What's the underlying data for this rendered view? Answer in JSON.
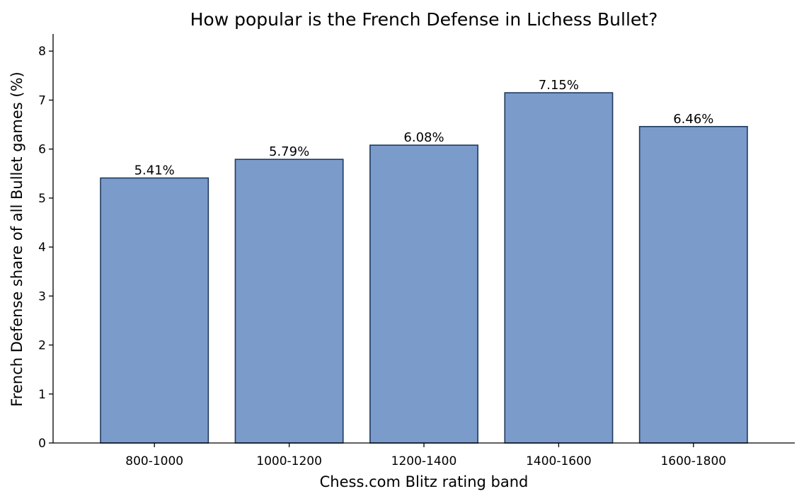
{
  "chart_data": {
    "type": "bar",
    "title": "How popular is the French Defense in Lichess Bullet?",
    "xlabel": "Chess.com Blitz rating band",
    "ylabel": "French Defense share of all Bullet games (%)",
    "categories": [
      "800-1000",
      "1000-1200",
      "1200-1400",
      "1400-1600",
      "1600-1800"
    ],
    "values": [
      5.41,
      5.79,
      6.08,
      7.15,
      6.46
    ],
    "data_labels": [
      "5.41%",
      "5.79%",
      "6.08%",
      "7.15%",
      "6.46%"
    ],
    "ylim": [
      0,
      8.35
    ],
    "yticks": [
      0,
      1,
      2,
      3,
      4,
      5,
      6,
      7,
      8
    ],
    "grid": false,
    "bar_color": "#7b9bcb",
    "bar_edge_color": "#1f3a5f"
  }
}
